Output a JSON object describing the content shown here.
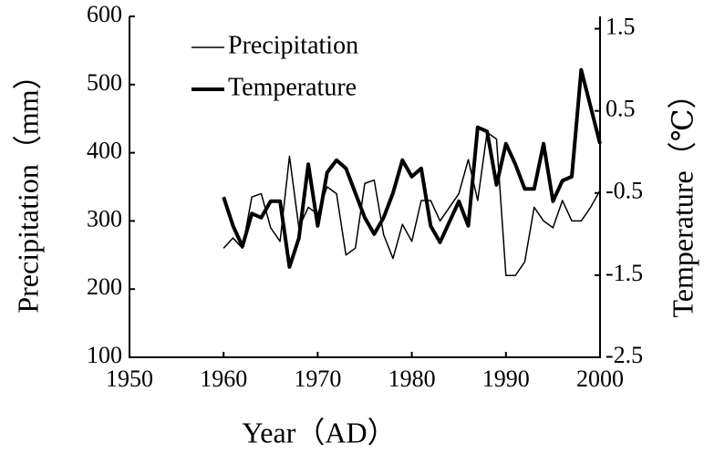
{
  "chart_data": {
    "type": "line",
    "x": [
      1960,
      1961,
      1962,
      1963,
      1964,
      1965,
      1966,
      1967,
      1968,
      1969,
      1970,
      1971,
      1972,
      1973,
      1974,
      1975,
      1976,
      1977,
      1978,
      1979,
      1980,
      1981,
      1982,
      1983,
      1984,
      1985,
      1986,
      1987,
      1988,
      1989,
      1990,
      1991,
      1992,
      1993,
      1994,
      1995,
      1996,
      1997,
      1998,
      1999,
      2000
    ],
    "series": [
      {
        "name": "Precipitation",
        "color": "#000000",
        "values": [
          260,
          275,
          260,
          335,
          340,
          290,
          270,
          395,
          290,
          320,
          310,
          350,
          340,
          250,
          260,
          355,
          360,
          280,
          245,
          295,
          270,
          330,
          330,
          300,
          320,
          340,
          390,
          330,
          430,
          420,
          220,
          220,
          240,
          320,
          300,
          290,
          330,
          300,
          300,
          320,
          345
        ]
      },
      {
        "name": "Temperature",
        "color": "#000000",
        "axis": "y2",
        "values": [
          -0.55,
          -0.9,
          -1.15,
          -0.75,
          -0.8,
          -0.6,
          -0.6,
          -1.4,
          -1.05,
          -0.15,
          -0.9,
          -0.25,
          -0.1,
          -0.2,
          -0.5,
          -0.8,
          -1.0,
          -0.8,
          -0.5,
          -0.1,
          -0.3,
          -0.2,
          -0.9,
          -1.1,
          -0.85,
          -0.6,
          -0.9,
          0.3,
          0.25,
          -0.4,
          0.1,
          -0.15,
          -0.45,
          -0.45,
          0.1,
          -0.6,
          -0.35,
          -0.3,
          1.0,
          0.55,
          0.1
        ]
      }
    ],
    "xlabel": "Year（AD）",
    "ylabel": "Precipitation（mm）",
    "y2label": "Temperature（℃）",
    "xlim": [
      1950,
      2000
    ],
    "xticks": [
      1950,
      1960,
      1970,
      1980,
      1990,
      2000
    ],
    "ylim": [
      100,
      600
    ],
    "yticks": [
      100,
      200,
      300,
      400,
      500,
      600
    ],
    "y2lim": [
      -2.5,
      1.65
    ],
    "y2ticks": [
      -2.5,
      -1.5,
      -0.5,
      0.5,
      1.5
    ],
    "legend": "upper left"
  }
}
